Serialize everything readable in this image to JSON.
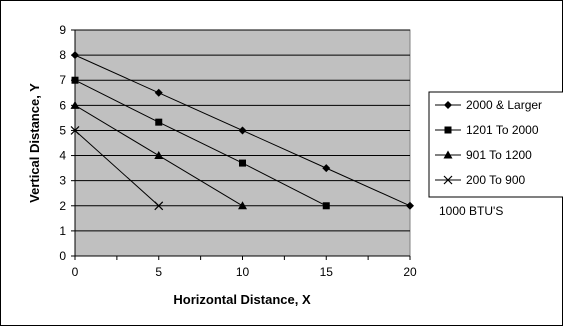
{
  "chart_data": {
    "type": "line",
    "title": "",
    "xlabel": "Horizontal Distance, X",
    "ylabel": "Vertical Distance, Y",
    "xlim": [
      0,
      20
    ],
    "ylim": [
      0,
      9
    ],
    "x_ticks": [
      "0",
      "5",
      "10",
      "15",
      "20"
    ],
    "y_ticks": [
      "0",
      "1",
      "2",
      "3",
      "4",
      "5",
      "6",
      "7",
      "8",
      "9"
    ],
    "grid": "horizontal",
    "plot_background": "#c0c0c0",
    "legend_position": "right",
    "series": [
      {
        "name": "2000 & Larger",
        "marker": "diamond",
        "color": "#000000",
        "points": [
          [
            0,
            8
          ],
          [
            5,
            6.5
          ],
          [
            10,
            5
          ],
          [
            15,
            3.5
          ],
          [
            20,
            2
          ]
        ]
      },
      {
        "name": "1201 To 2000",
        "marker": "square",
        "color": "#000000",
        "points": [
          [
            0,
            7
          ],
          [
            5,
            5.33
          ],
          [
            10,
            3.7
          ],
          [
            15,
            2
          ]
        ]
      },
      {
        "name": "901 To 1200",
        "marker": "triangle",
        "color": "#000000",
        "points": [
          [
            0,
            6
          ],
          [
            5,
            4
          ],
          [
            10,
            2
          ]
        ]
      },
      {
        "name": "200 To 900",
        "marker": "x",
        "color": "#000000",
        "points": [
          [
            0,
            5
          ],
          [
            5,
            2
          ]
        ]
      }
    ],
    "annotation": "1000 BTU'S"
  }
}
